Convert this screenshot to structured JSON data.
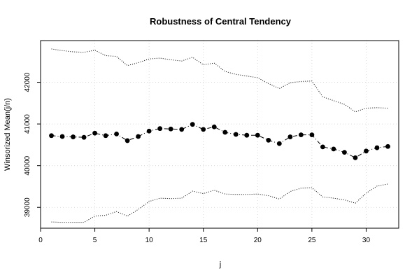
{
  "chart_data": {
    "type": "line",
    "title": "Robustness of Central Tendency",
    "xlabel": "j",
    "ylabel": "Winsorized Mean(j/n)",
    "xlim": [
      0,
      33
    ],
    "ylim": [
      38500,
      43000
    ],
    "xticks": [
      0,
      5,
      10,
      15,
      20,
      25,
      30
    ],
    "yticks": [
      39000,
      40000,
      41000,
      42000
    ],
    "grid": true,
    "x": [
      1,
      2,
      3,
      4,
      5,
      6,
      7,
      8,
      9,
      10,
      11,
      12,
      13,
      14,
      15,
      16,
      17,
      18,
      19,
      20,
      21,
      22,
      23,
      24,
      25,
      26,
      27,
      28,
      29,
      30,
      31,
      32
    ],
    "series": [
      {
        "role": "upper",
        "style": "dotted",
        "values": [
          42800,
          42760,
          42730,
          42720,
          42770,
          42640,
          42620,
          42400,
          42470,
          42560,
          42580,
          42540,
          42510,
          42600,
          42420,
          42460,
          42260,
          42190,
          42150,
          42110,
          41970,
          41850,
          41990,
          42020,
          42030,
          41650,
          41560,
          41470,
          41290,
          41380,
          41390,
          41380
        ]
      },
      {
        "role": "mean",
        "style": "dash-dot with points",
        "values": [
          40720,
          40700,
          40690,
          40680,
          40780,
          40720,
          40760,
          40600,
          40700,
          40830,
          40890,
          40880,
          40870,
          40990,
          40870,
          40930,
          40800,
          40750,
          40730,
          40730,
          40610,
          40530,
          40690,
          40740,
          40740,
          40450,
          40400,
          40320,
          40190,
          40350,
          40430,
          40460
        ]
      },
      {
        "role": "lower",
        "style": "dotted",
        "values": [
          38650,
          38640,
          38640,
          38640,
          38790,
          38810,
          38900,
          38790,
          38950,
          39140,
          39220,
          39210,
          39220,
          39390,
          39330,
          39410,
          39320,
          39310,
          39310,
          39320,
          39280,
          39200,
          39380,
          39460,
          39470,
          39250,
          39220,
          39180,
          39100,
          39340,
          39510,
          39560
        ]
      }
    ]
  }
}
